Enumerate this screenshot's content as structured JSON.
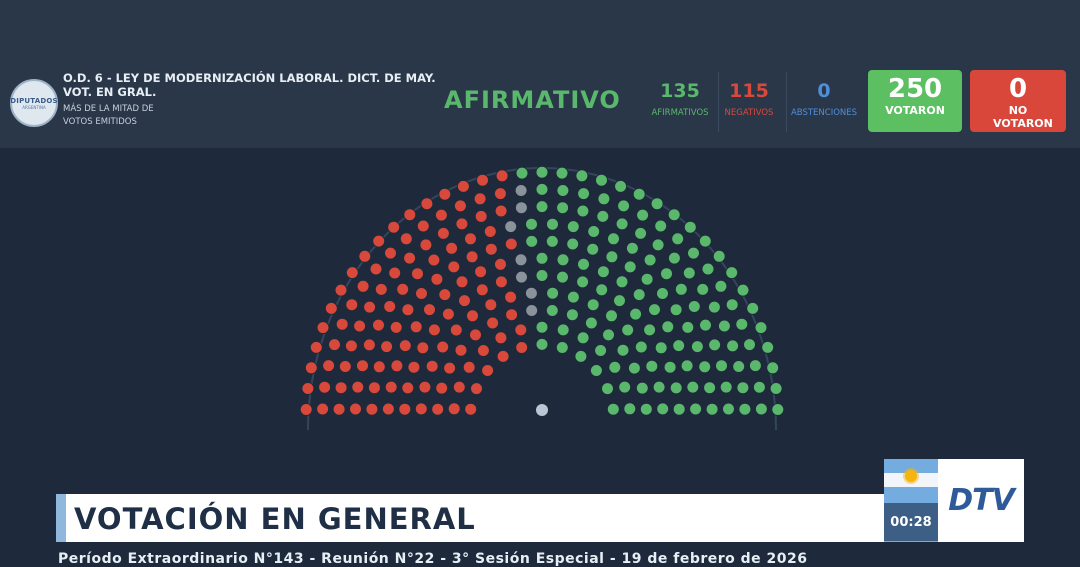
{
  "header": {
    "logo_line1": "DIPUTADOS",
    "logo_line2": "ARGENTINA",
    "motion_title": "O.D. 6 - LEY DE MODERNIZACIÓN LABORAL. DICT. DE MAY. VOT. EN GRAL.",
    "motion_sub": "MÁS DE LA MITAD DE VOTOS EMITIDOS",
    "result": "AFIRMATIVO",
    "afirmativos": {
      "value": "135",
      "label": "AFIRMATIVOS"
    },
    "negativos": {
      "value": "115",
      "label": "NEGATIVOS"
    },
    "abstenciones": {
      "value": "0",
      "label": "ABSTENCIONES"
    },
    "votaron": {
      "value": "250",
      "label": "VOTARON"
    },
    "no_votaron": {
      "value": "0",
      "label": "NO VOTARON"
    }
  },
  "chamber": {
    "colors": {
      "afirmativo": "#5ab86c",
      "negativo": "#d8493c",
      "ausente": "#8a929c",
      "presidente": "#b9c6d4"
    },
    "afirmativos": 135,
    "negativos": 115,
    "ausentes": 7
  },
  "lower_third": {
    "title": "VOTACIÓN EN GENERAL",
    "timer": "00:28",
    "channel": "DTV",
    "footer": "Período Extraordinario N°143 - Reunión N°22 - 3° Sesión Especial - 19 de febrero de 2026"
  }
}
